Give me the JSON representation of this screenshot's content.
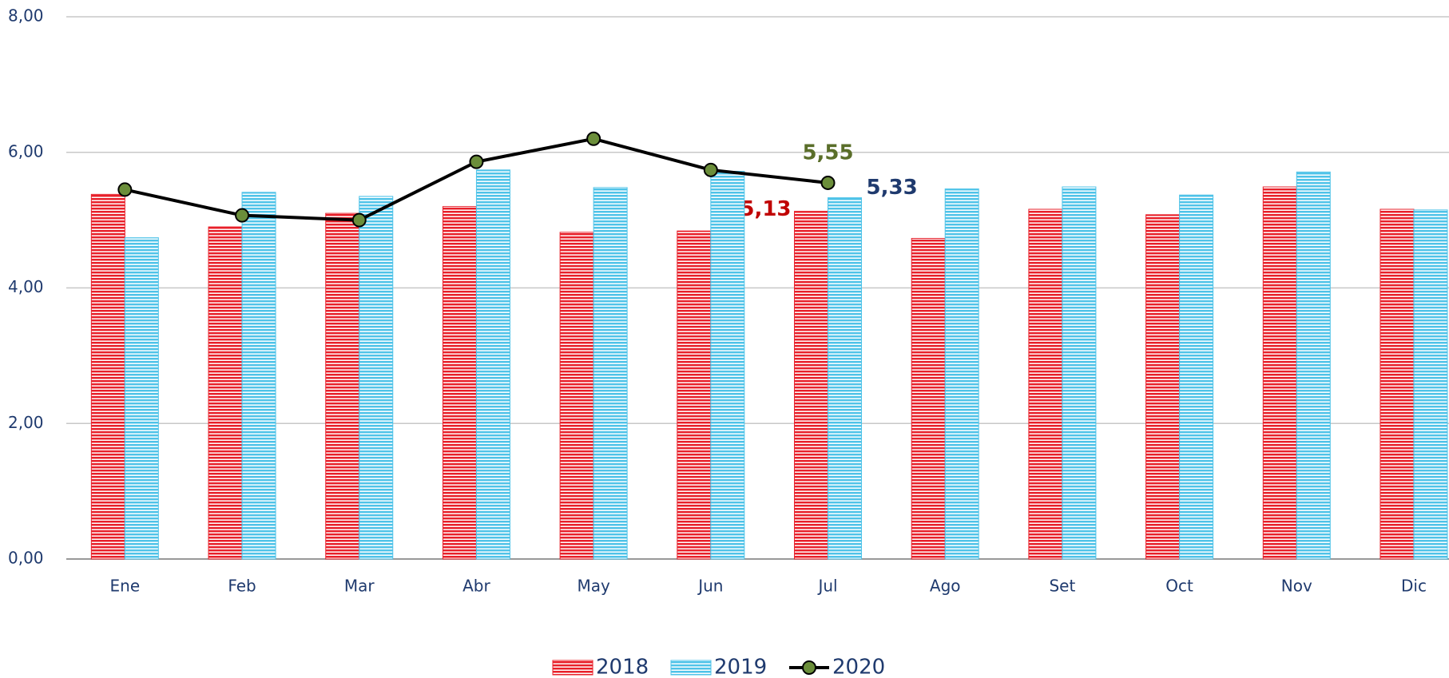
{
  "chart_data": {
    "type": "bar_line",
    "categories": [
      "Ene",
      "Feb",
      "Mar",
      "Abr",
      "May",
      "Jun",
      "Jul",
      "Ago",
      "Set",
      "Oct",
      "Nov",
      "Dic"
    ],
    "series": [
      {
        "name": "2018",
        "type": "bar",
        "color": "#e8202a",
        "label_color": "#c00000",
        "values": [
          5.38,
          4.9,
          5.1,
          5.2,
          4.82,
          4.84,
          5.13,
          4.73,
          5.16,
          5.08,
          5.49,
          5.16
        ],
        "value_labels": [
          null,
          null,
          null,
          null,
          null,
          null,
          "5,13",
          null,
          null,
          null,
          null,
          null
        ]
      },
      {
        "name": "2019",
        "type": "bar",
        "color": "#4fc3e8",
        "label_color": "#1f3a6e",
        "values": [
          4.74,
          5.41,
          5.35,
          5.74,
          5.48,
          5.72,
          5.33,
          5.46,
          5.49,
          5.37,
          5.71,
          5.15
        ],
        "value_labels": [
          null,
          null,
          null,
          null,
          null,
          null,
          "5,33",
          null,
          null,
          null,
          null,
          null
        ]
      },
      {
        "name": "2020",
        "type": "line",
        "color": "#000000",
        "marker_color": "#6b8e3a",
        "label_color": "#5a6e2a",
        "values": [
          5.45,
          5.07,
          5.0,
          5.86,
          6.2,
          5.74,
          5.55,
          null,
          null,
          null,
          null,
          null
        ],
        "value_labels": [
          null,
          null,
          null,
          null,
          null,
          null,
          "5,55",
          null,
          null,
          null,
          null,
          null
        ]
      }
    ],
    "ylim": [
      0,
      8
    ],
    "yticks": [
      {
        "value": 0,
        "label": "0,00"
      },
      {
        "value": 2,
        "label": "2,00"
      },
      {
        "value": 4,
        "label": "4,00"
      },
      {
        "value": 6,
        "label": "6,00"
      },
      {
        "value": 8,
        "label": "8,00"
      }
    ],
    "grid": true,
    "legend": "bottom"
  }
}
